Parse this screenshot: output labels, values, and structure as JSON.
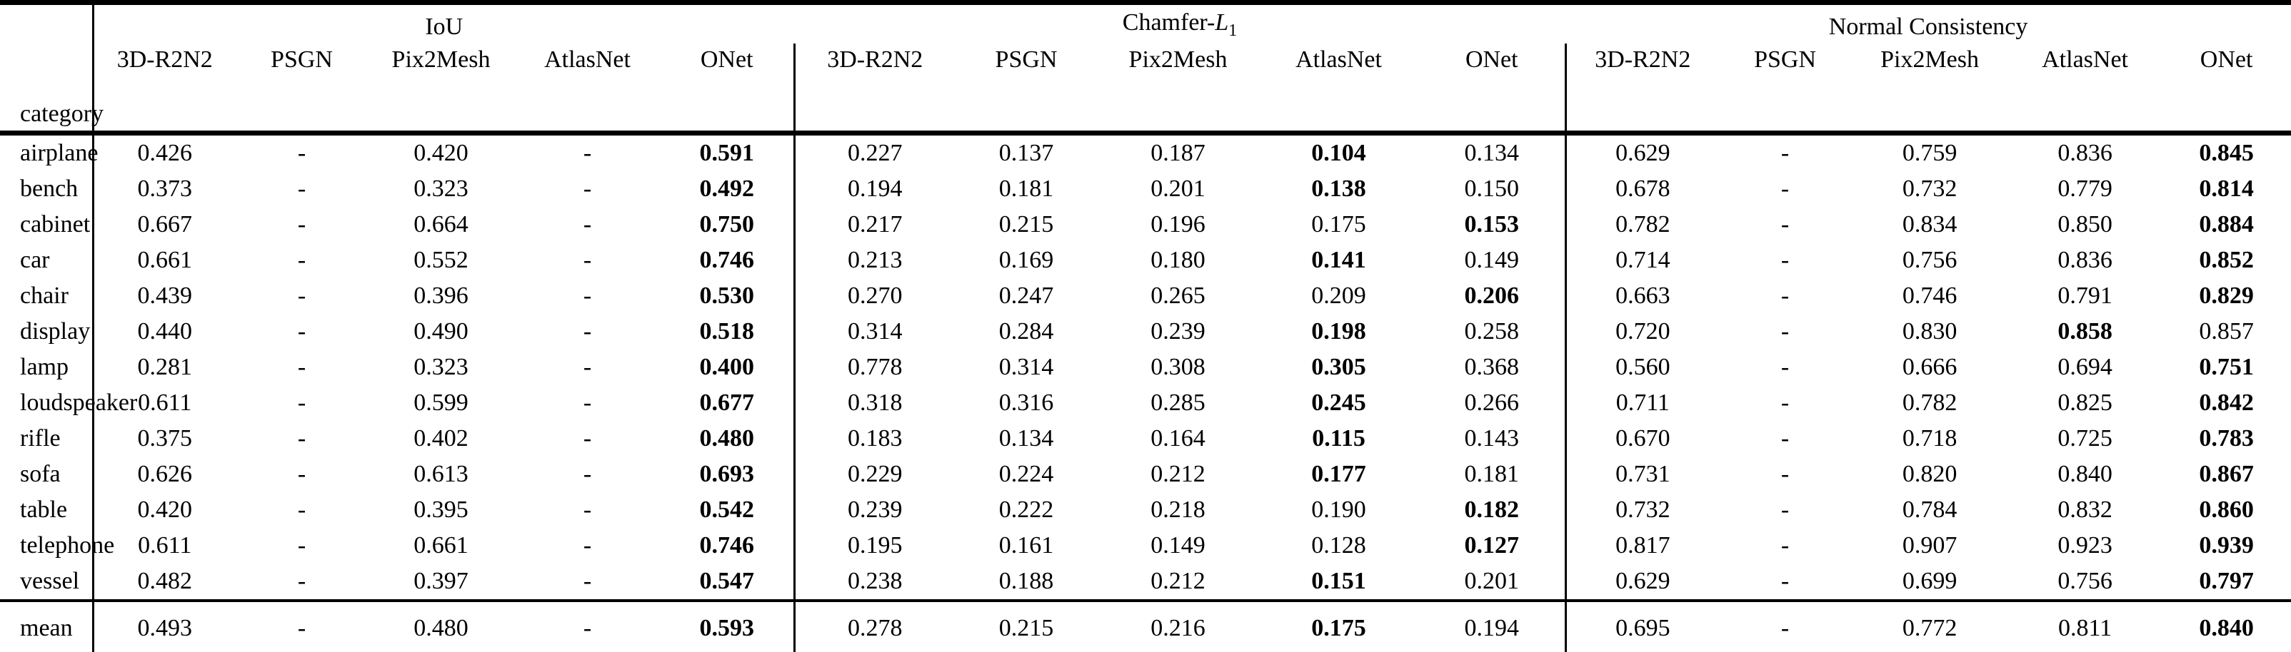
{
  "table": {
    "background_color": "#ffffff",
    "text_color": "#000000",
    "category_header": "category",
    "groups": [
      {
        "title": "IoU",
        "methods": [
          "3D-R2N2",
          "PSGN",
          "Pix2Mesh",
          "AtlasNet",
          "ONet"
        ]
      },
      {
        "title_prefix": "Chamfer-",
        "title_letter": "L",
        "title_subscript": "1",
        "methods": [
          "3D-R2N2",
          "PSGN",
          "Pix2Mesh",
          "AtlasNet",
          "ONet"
        ]
      },
      {
        "title": "Normal Consistency",
        "methods": [
          "3D-R2N2",
          "PSGN",
          "Pix2Mesh",
          "AtlasNet",
          "ONet"
        ]
      }
    ],
    "rows": [
      {
        "category": "airplane",
        "values": [
          "0.426",
          "-",
          "0.420",
          "-",
          "0.591",
          "0.227",
          "0.137",
          "0.187",
          "0.104",
          "0.134",
          "0.629",
          "-",
          "0.759",
          "0.836",
          "0.845"
        ],
        "bold": [
          4,
          8,
          14
        ]
      },
      {
        "category": "bench",
        "values": [
          "0.373",
          "-",
          "0.323",
          "-",
          "0.492",
          "0.194",
          "0.181",
          "0.201",
          "0.138",
          "0.150",
          "0.678",
          "-",
          "0.732",
          "0.779",
          "0.814"
        ],
        "bold": [
          4,
          8,
          14
        ]
      },
      {
        "category": "cabinet",
        "values": [
          "0.667",
          "-",
          "0.664",
          "-",
          "0.750",
          "0.217",
          "0.215",
          "0.196",
          "0.175",
          "0.153",
          "0.782",
          "-",
          "0.834",
          "0.850",
          "0.884"
        ],
        "bold": [
          4,
          9,
          14
        ]
      },
      {
        "category": "car",
        "values": [
          "0.661",
          "-",
          "0.552",
          "-",
          "0.746",
          "0.213",
          "0.169",
          "0.180",
          "0.141",
          "0.149",
          "0.714",
          "-",
          "0.756",
          "0.836",
          "0.852"
        ],
        "bold": [
          4,
          8,
          14
        ]
      },
      {
        "category": "chair",
        "values": [
          "0.439",
          "-",
          "0.396",
          "-",
          "0.530",
          "0.270",
          "0.247",
          "0.265",
          "0.209",
          "0.206",
          "0.663",
          "-",
          "0.746",
          "0.791",
          "0.829"
        ],
        "bold": [
          4,
          9,
          14
        ]
      },
      {
        "category": "display",
        "values": [
          "0.440",
          "-",
          "0.490",
          "-",
          "0.518",
          "0.314",
          "0.284",
          "0.239",
          "0.198",
          "0.258",
          "0.720",
          "-",
          "0.830",
          "0.858",
          "0.857"
        ],
        "bold": [
          4,
          8,
          13
        ]
      },
      {
        "category": "lamp",
        "values": [
          "0.281",
          "-",
          "0.323",
          "-",
          "0.400",
          "0.778",
          "0.314",
          "0.308",
          "0.305",
          "0.368",
          "0.560",
          "-",
          "0.666",
          "0.694",
          "0.751"
        ],
        "bold": [
          4,
          8,
          14
        ]
      },
      {
        "category": "loudspeaker",
        "values": [
          "0.611",
          "-",
          "0.599",
          "-",
          "0.677",
          "0.318",
          "0.316",
          "0.285",
          "0.245",
          "0.266",
          "0.711",
          "-",
          "0.782",
          "0.825",
          "0.842"
        ],
        "bold": [
          4,
          8,
          14
        ]
      },
      {
        "category": "rifle",
        "values": [
          "0.375",
          "-",
          "0.402",
          "-",
          "0.480",
          "0.183",
          "0.134",
          "0.164",
          "0.115",
          "0.143",
          "0.670",
          "-",
          "0.718",
          "0.725",
          "0.783"
        ],
        "bold": [
          4,
          8,
          14
        ]
      },
      {
        "category": "sofa",
        "values": [
          "0.626",
          "-",
          "0.613",
          "-",
          "0.693",
          "0.229",
          "0.224",
          "0.212",
          "0.177",
          "0.181",
          "0.731",
          "-",
          "0.820",
          "0.840",
          "0.867"
        ],
        "bold": [
          4,
          8,
          14
        ]
      },
      {
        "category": "table",
        "values": [
          "0.420",
          "-",
          "0.395",
          "-",
          "0.542",
          "0.239",
          "0.222",
          "0.218",
          "0.190",
          "0.182",
          "0.732",
          "-",
          "0.784",
          "0.832",
          "0.860"
        ],
        "bold": [
          4,
          9,
          14
        ]
      },
      {
        "category": "telephone",
        "values": [
          "0.611",
          "-",
          "0.661",
          "-",
          "0.746",
          "0.195",
          "0.161",
          "0.149",
          "0.128",
          "0.127",
          "0.817",
          "-",
          "0.907",
          "0.923",
          "0.939"
        ],
        "bold": [
          4,
          9,
          14
        ]
      },
      {
        "category": "vessel",
        "values": [
          "0.482",
          "-",
          "0.397",
          "-",
          "0.547",
          "0.238",
          "0.188",
          "0.212",
          "0.151",
          "0.201",
          "0.629",
          "-",
          "0.699",
          "0.756",
          "0.797"
        ],
        "bold": [
          4,
          8,
          14
        ]
      }
    ],
    "mean": {
      "category": "mean",
      "values": [
        "0.493",
        "-",
        "0.480",
        "-",
        "0.593",
        "0.278",
        "0.215",
        "0.216",
        "0.175",
        "0.194",
        "0.695",
        "-",
        "0.772",
        "0.811",
        "0.840"
      ],
      "bold": [
        4,
        8,
        14
      ]
    }
  }
}
